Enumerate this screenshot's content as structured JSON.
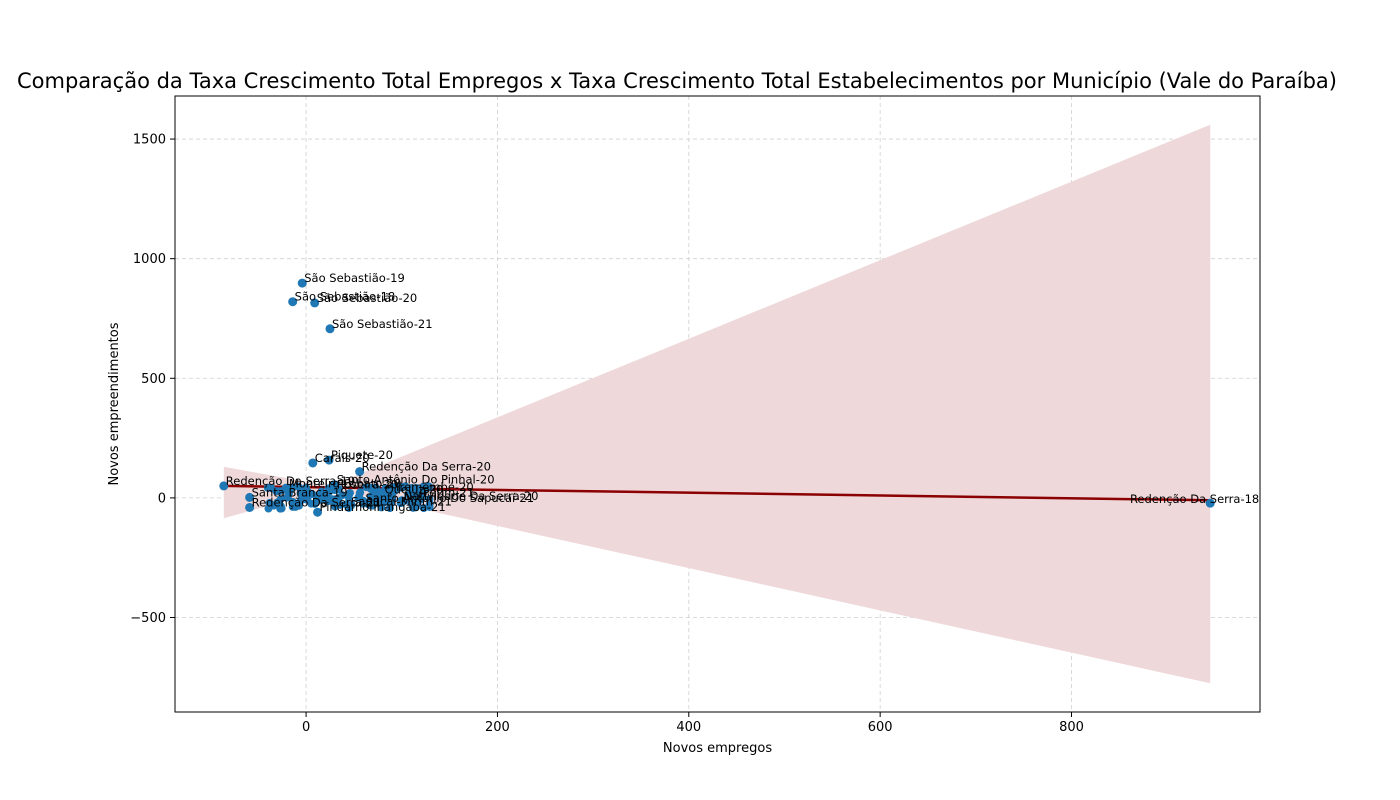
{
  "chart_data": {
    "type": "scatter",
    "title": "Comparação da Taxa Crescimento Total Empregos x Taxa Crescimento Total Estabelecimentos por Município (Vale do Paraíba)",
    "xlabel": "Novos empregos",
    "ylabel": "Novos empreendimentos",
    "xlim": [
      -137,
      997
    ],
    "ylim": [
      -895,
      1680
    ],
    "xticks": [
      0,
      200,
      400,
      600,
      800
    ],
    "yticks": [
      -500,
      0,
      500,
      1000,
      1500
    ],
    "grid": true,
    "colors": {
      "points": "#1f77b4",
      "regression": "#8b0000",
      "confidence_band": "#eed8da",
      "grid": "#d0d0d0"
    },
    "labeled_points": [
      {
        "label": "São Sebastião-19",
        "x": -4,
        "y": 898
      },
      {
        "label": "São Sebastião-18",
        "x": -14,
        "y": 820
      },
      {
        "label": "São Sebastião-20",
        "x": 9,
        "y": 815
      },
      {
        "label": "São Sebastião-21",
        "x": 25,
        "y": 707
      },
      {
        "label": "Piquete-20",
        "x": 24,
        "y": 158
      },
      {
        "label": "Caraís-20",
        "x": 7,
        "y": 146
      },
      {
        "label": "Redenção Da Serra-20",
        "x": 56,
        "y": 110
      },
      {
        "label": "Redenção Da Serra-18",
        "x": 945,
        "y": -22
      },
      {
        "label": "Redenção Da Serra-19",
        "x": -86,
        "y": 50
      },
      {
        "label": "Redenção Da Serra-21",
        "x": -59,
        "y": -40
      },
      {
        "label": "Santa Branca-19",
        "x": -59,
        "y": 2
      },
      {
        "label": "Santo Antônio Do Pinhal-20",
        "x": 30,
        "y": 55
      },
      {
        "label": "Sapucaí-Mirim-21",
        "x": 45,
        "y": -37
      },
      {
        "label": "Pindamonhangaba-21",
        "x": 12,
        "y": -60
      },
      {
        "label": "Natividade Da Serra-20",
        "x": 100,
        "y": -12
      },
      {
        "label": "Potim-21",
        "x": 120,
        "y": 2
      },
      {
        "label": "Queluz-20",
        "x": 80,
        "y": 15
      },
      {
        "label": "Roseira-20",
        "x": 30,
        "y": 35
      },
      {
        "label": "Monteiro Lobato-20",
        "x": -20,
        "y": 40
      },
      {
        "label": "Santo Antônio Do Sapucaí-21",
        "x": 60,
        "y": -22
      },
      {
        "label": "Tremembé-20",
        "x": 90,
        "y": 25
      }
    ],
    "regression_line": {
      "x": [
        -86,
        945
      ],
      "y": [
        50,
        -10
      ]
    },
    "confidence_band": {
      "x_start": -86,
      "x_end": 945,
      "upper": [
        130,
        1560
      ],
      "lower": [
        -85,
        -775
      ]
    }
  }
}
